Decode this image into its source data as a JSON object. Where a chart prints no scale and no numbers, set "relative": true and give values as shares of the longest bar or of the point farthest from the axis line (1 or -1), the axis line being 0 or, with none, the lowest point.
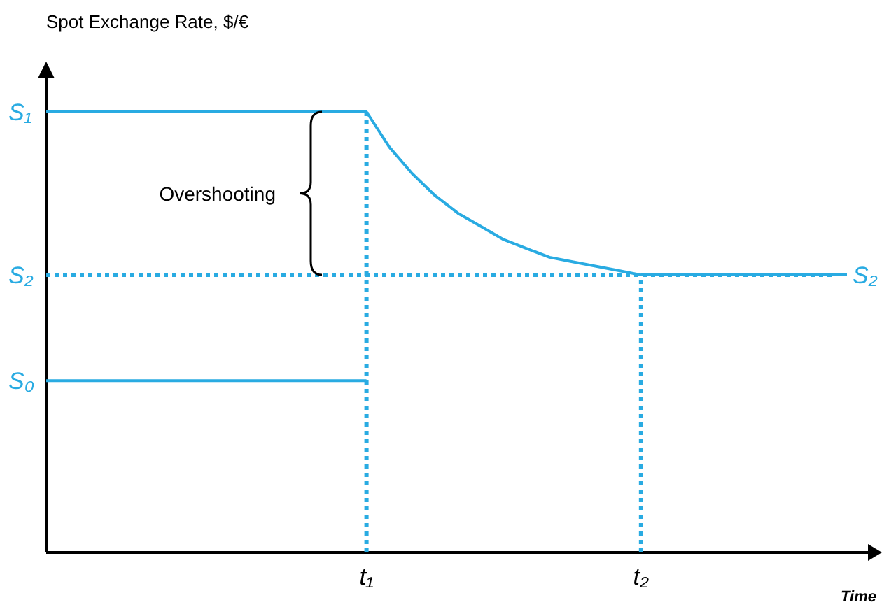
{
  "chart_data": {
    "type": "line",
    "relative": true,
    "ylabel": "Spot Exchange Rate, $/€",
    "xlabel": "Time",
    "line_style": "solid",
    "categories": [
      null,
      null,
      null,
      null,
      null,
      null,
      null,
      null,
      null,
      null,
      null,
      null,
      null,
      null,
      "t₁",
      null,
      null,
      null,
      null,
      null,
      null,
      null,
      null,
      null,
      null,
      null,
      "t₂",
      null,
      null,
      null,
      null,
      null,
      null,
      null,
      null,
      null
    ],
    "series": [
      {
        "name": "S₁",
        "color": "#29abe2",
        "values": [
          1,
          1,
          1,
          1,
          1,
          1,
          1,
          1,
          1,
          1,
          1,
          1,
          1,
          1,
          1,
          0.92,
          0.86,
          0.81,
          0.77,
          0.74,
          0.71,
          0.69,
          0.67,
          0.66,
          0.65,
          0.64,
          0.63,
          0.63,
          0.63,
          0.63,
          0.63,
          0.63,
          0.63,
          0.63,
          0.63,
          0.63
        ]
      },
      {
        "name": "S₀",
        "color": "#29abe2",
        "values": [
          0.39,
          0.39,
          0.39,
          0.39,
          0.39,
          0.39,
          0.39,
          0.39,
          0.39,
          0.39,
          0.39,
          0.39,
          0.39,
          0.39,
          0.39,
          null,
          null,
          null,
          null,
          null,
          null,
          null,
          null,
          null,
          null,
          null,
          null,
          null,
          null,
          null,
          null,
          null,
          null,
          null,
          null,
          null
        ]
      }
    ],
    "ref_lines": [
      {
        "axis": "y",
        "value": 0.63,
        "label": "S₂",
        "color": "#29abe2",
        "line_style": "dotted"
      },
      {
        "axis": "x",
        "value": "t₁",
        "color": "#29abe2",
        "line_style": "dotted"
      },
      {
        "axis": "x",
        "value": "t₂",
        "color": "#29abe2",
        "line_style": "dotted"
      }
    ],
    "annotations": [
      "Overshooting",
      "S₂"
    ]
  }
}
